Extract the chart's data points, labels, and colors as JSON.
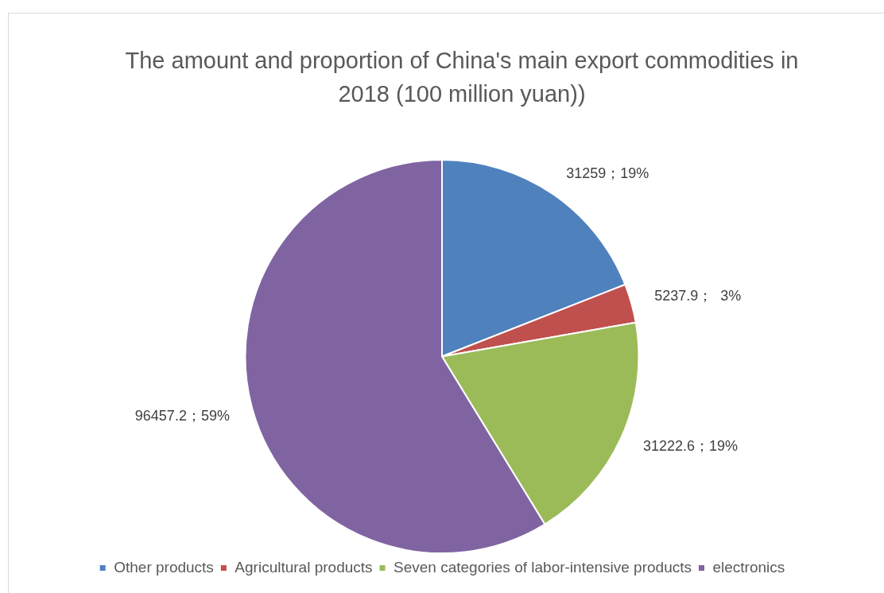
{
  "chart_data": {
    "type": "pie",
    "title": "The amount and proportion of China's main export commodities in 2018 (100 million yuan))",
    "categories": [
      "Other products",
      "Agricultural products",
      "Seven categories of labor-intensive products",
      "electronics"
    ],
    "values": [
      31259,
      5237.9,
      31222.6,
      96457.2
    ],
    "colors": [
      "#4f81bd",
      "#c0504d",
      "#9bbb59",
      "#8064a2"
    ],
    "value_labels": [
      "31259；19%",
      "5237.9；  3%",
      "31222.6；19%",
      "96457.2；59%"
    ],
    "legend": "bottom"
  }
}
